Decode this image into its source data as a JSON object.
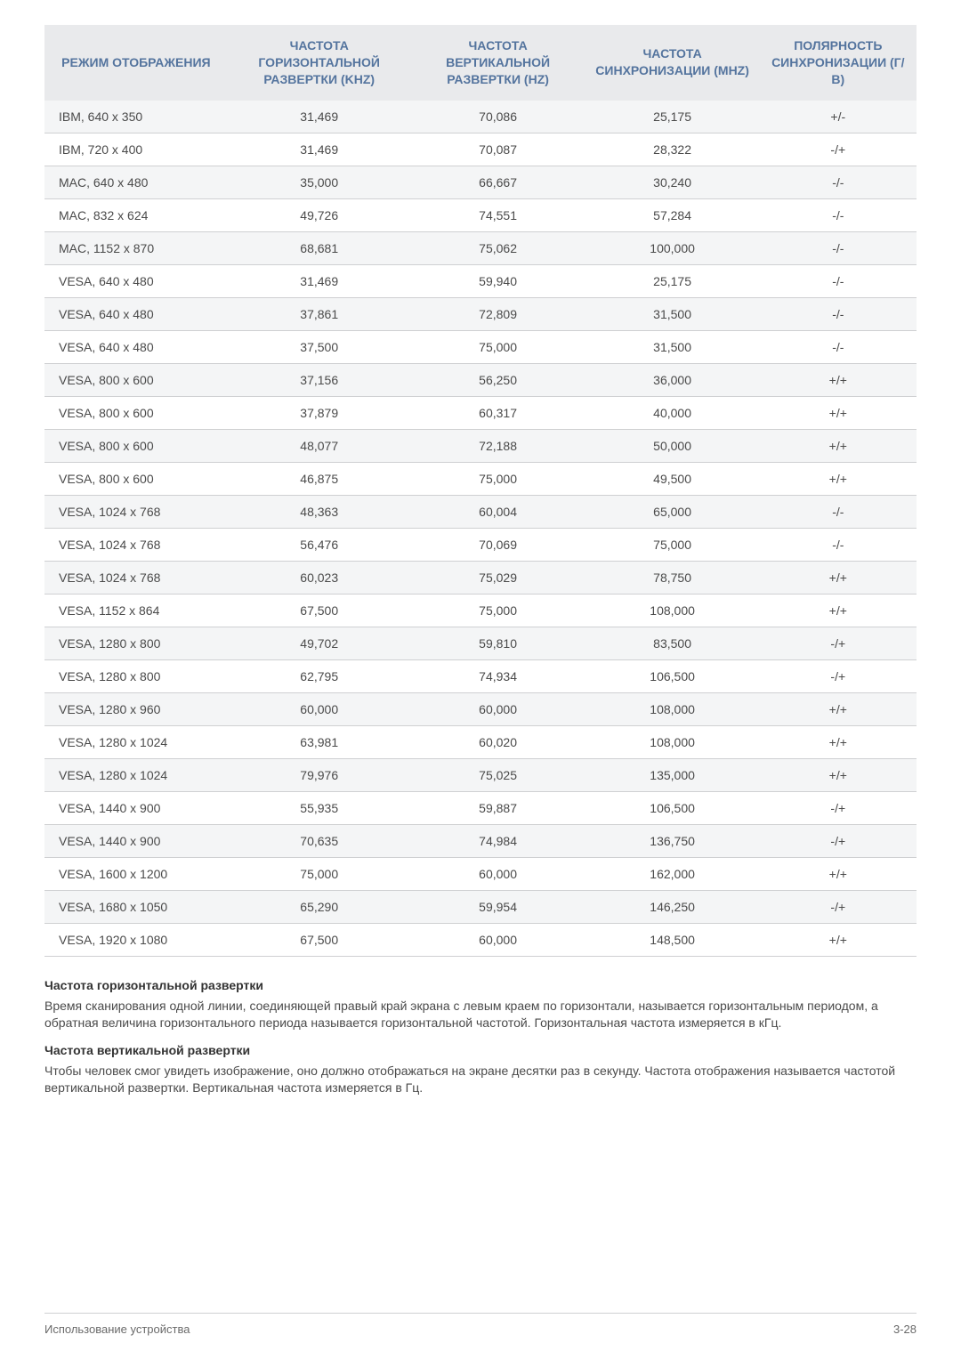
{
  "table": {
    "columns": [
      "РЕЖИМ ОТОБРАЖЕНИЯ",
      "ЧАСТОТА ГОРИЗОНТАЛЬНОЙ РАЗВЕРТКИ (KHZ)",
      "ЧАСТОТА ВЕРТИКАЛЬНОЙ РАЗВЕРТКИ (HZ)",
      "ЧАСТОТА СИНХРОНИЗАЦИИ (MHZ)",
      "ПОЛЯРНОСТЬ СИНХРОНИЗАЦИИ (Г/В)"
    ],
    "column_widths": [
      "21%",
      "21%",
      "20%",
      "20%",
      "18%"
    ],
    "header_bg": "#e9eaec",
    "header_color": "#54749e",
    "row_odd_bg": "#f4f5f6",
    "row_even_bg": "#ffffff",
    "border_color": "#cfd0d2",
    "text_color": "#4a4a4a",
    "rows": [
      [
        "IBM, 640 x 350",
        "31,469",
        "70,086",
        "25,175",
        "+/-"
      ],
      [
        "IBM, 720 x 400",
        "31,469",
        "70,087",
        "28,322",
        "-/+"
      ],
      [
        "MAC, 640 x 480",
        "35,000",
        "66,667",
        "30,240",
        "-/-"
      ],
      [
        "MAC, 832 x 624",
        "49,726",
        "74,551",
        "57,284",
        "-/-"
      ],
      [
        "MAC, 1152 x 870",
        "68,681",
        "75,062",
        "100,000",
        "-/-"
      ],
      [
        "VESA, 640 x 480",
        "31,469",
        "59,940",
        "25,175",
        "-/-"
      ],
      [
        "VESA, 640 x 480",
        "37,861",
        "72,809",
        "31,500",
        "-/-"
      ],
      [
        "VESA, 640 x 480",
        "37,500",
        "75,000",
        "31,500",
        "-/-"
      ],
      [
        "VESA, 800 x 600",
        "37,156",
        "56,250",
        "36,000",
        "+/+"
      ],
      [
        "VESA, 800 x 600",
        "37,879",
        "60,317",
        "40,000",
        "+/+"
      ],
      [
        "VESA, 800 x 600",
        "48,077",
        "72,188",
        "50,000",
        "+/+"
      ],
      [
        "VESA, 800 x 600",
        "46,875",
        "75,000",
        "49,500",
        "+/+"
      ],
      [
        "VESA, 1024 x 768",
        "48,363",
        "60,004",
        "65,000",
        "-/-"
      ],
      [
        "VESA, 1024 x 768",
        "56,476",
        "70,069",
        "75,000",
        "-/-"
      ],
      [
        "VESA, 1024 x 768",
        "60,023",
        "75,029",
        "78,750",
        "+/+"
      ],
      [
        "VESA, 1152 x 864",
        "67,500",
        "75,000",
        "108,000",
        "+/+"
      ],
      [
        "VESA, 1280 x 800",
        "49,702",
        "59,810",
        "83,500",
        "-/+"
      ],
      [
        "VESA, 1280 x 800",
        "62,795",
        "74,934",
        "106,500",
        "-/+"
      ],
      [
        "VESA, 1280 x 960",
        "60,000",
        "60,000",
        "108,000",
        "+/+"
      ],
      [
        "VESA, 1280 x 1024",
        "63,981",
        "60,020",
        "108,000",
        "+/+"
      ],
      [
        "VESA, 1280 x 1024",
        "79,976",
        "75,025",
        "135,000",
        "+/+"
      ],
      [
        "VESA, 1440 x 900",
        "55,935",
        "59,887",
        "106,500",
        "-/+"
      ],
      [
        "VESA, 1440 x 900",
        "70,635",
        "74,984",
        "136,750",
        "-/+"
      ],
      [
        "VESA, 1600 x 1200",
        "75,000",
        "60,000",
        "162,000",
        "+/+"
      ],
      [
        "VESA, 1680 x 1050",
        "65,290",
        "59,954",
        "146,250",
        "-/+"
      ],
      [
        "VESA, 1920 x 1080",
        "67,500",
        "60,000",
        "148,500",
        "+/+"
      ]
    ]
  },
  "sections": {
    "h1_title": "Частота горизонтальной развертки",
    "h1_text": "Время сканирования одной линии, соединяющей правый край экрана с левым краем по горизонтали, называется горизонтальным периодом, а обратная величина горизонтального периода называется горизонтальной частотой. Горизонтальная частота измеряется в кГц.",
    "h2_title": "Частота вертикальной развертки",
    "h2_text": "Чтобы человек смог увидеть изображение, оно должно отображаться на экране десятки раз в секунду. Частота отображения называется частотой вертикальной развертки. Вертикальная частота измеряется в Гц."
  },
  "footer": {
    "left": "Использование устройства",
    "right": "3-28"
  }
}
